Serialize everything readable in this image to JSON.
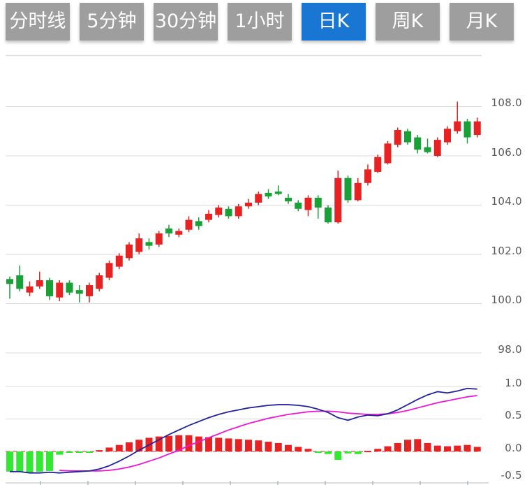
{
  "toolbar": {
    "buttons": [
      {
        "label": "分时线",
        "active": false
      },
      {
        "label": "5分钟",
        "active": false
      },
      {
        "label": "30分钟",
        "active": false
      },
      {
        "label": "1小时",
        "active": false
      },
      {
        "label": "日K",
        "active": true
      },
      {
        "label": "周K",
        "active": false
      },
      {
        "label": "月K",
        "active": false
      }
    ]
  },
  "chart_data": {
    "type": "candlestick+macd",
    "grid": true,
    "price_axis": {
      "side": "right",
      "ticks": [
        108.0,
        106.0,
        104.0,
        102.0,
        100.0,
        98.0
      ],
      "labels": [
        "108.0",
        "106.0",
        "104.0",
        "102.0",
        "100.0",
        "98.0"
      ],
      "range": [
        97.0,
        110.0
      ]
    },
    "indicator_axis": {
      "side": "right",
      "ticks": [
        1.0,
        0.5,
        0.0,
        -0.5
      ],
      "labels": [
        "1.0",
        "0.5",
        "0.0",
        "-0.5"
      ],
      "range": [
        -0.5,
        1.0
      ]
    },
    "candles_ohlc": [
      [
        101.0,
        101.1,
        100.2,
        100.8
      ],
      [
        101.15,
        101.55,
        100.5,
        100.6
      ],
      [
        100.45,
        100.9,
        100.3,
        100.7
      ],
      [
        100.7,
        101.3,
        100.6,
        100.95
      ],
      [
        100.95,
        101.05,
        100.15,
        100.3
      ],
      [
        100.25,
        100.95,
        100.1,
        100.85
      ],
      [
        100.85,
        100.95,
        100.35,
        100.45
      ],
      [
        100.55,
        100.75,
        100.05,
        100.4
      ],
      [
        100.3,
        100.85,
        100.05,
        100.75
      ],
      [
        100.6,
        101.25,
        100.5,
        101.15
      ],
      [
        101.05,
        101.75,
        100.95,
        101.65
      ],
      [
        101.5,
        102.05,
        101.4,
        101.95
      ],
      [
        101.85,
        102.5,
        101.75,
        102.4
      ],
      [
        102.1,
        102.85,
        102.0,
        102.65
      ],
      [
        102.5,
        102.65,
        102.2,
        102.35
      ],
      [
        102.4,
        102.95,
        102.3,
        102.85
      ],
      [
        103.05,
        103.2,
        102.7,
        102.85
      ],
      [
        102.8,
        103.05,
        102.7,
        102.95
      ],
      [
        103.0,
        103.55,
        102.9,
        103.4
      ],
      [
        103.35,
        103.5,
        103.0,
        103.15
      ],
      [
        103.4,
        103.8,
        103.3,
        103.65
      ],
      [
        103.6,
        104.0,
        103.5,
        103.9
      ],
      [
        103.85,
        103.95,
        103.45,
        103.55
      ],
      [
        103.55,
        104.05,
        103.45,
        103.95
      ],
      [
        103.95,
        104.25,
        103.85,
        104.1
      ],
      [
        104.1,
        104.55,
        104.0,
        104.45
      ],
      [
        104.5,
        104.65,
        104.25,
        104.35
      ],
      [
        104.55,
        104.8,
        104.4,
        104.45
      ],
      [
        104.3,
        104.45,
        104.05,
        104.15
      ],
      [
        104.1,
        104.2,
        103.75,
        103.85
      ],
      [
        103.8,
        104.4,
        103.55,
        104.3
      ],
      [
        104.3,
        104.4,
        103.45,
        103.9
      ],
      [
        103.9,
        104.0,
        103.25,
        103.3
      ],
      [
        103.3,
        105.4,
        103.25,
        105.1
      ],
      [
        105.1,
        105.2,
        104.1,
        104.2
      ],
      [
        104.2,
        105.1,
        104.15,
        104.9
      ],
      [
        104.9,
        105.65,
        104.8,
        105.45
      ],
      [
        105.35,
        106.05,
        105.3,
        105.95
      ],
      [
        105.7,
        106.6,
        105.65,
        106.5
      ],
      [
        106.45,
        107.15,
        106.35,
        107.05
      ],
      [
        107.0,
        107.1,
        106.45,
        106.55
      ],
      [
        106.75,
        106.85,
        106.1,
        106.25
      ],
      [
        106.35,
        106.7,
        106.1,
        106.15
      ],
      [
        106.0,
        106.75,
        105.95,
        106.65
      ],
      [
        106.55,
        107.2,
        106.45,
        107.1
      ],
      [
        107.0,
        108.2,
        106.9,
        107.4
      ],
      [
        107.4,
        107.5,
        106.5,
        106.75
      ],
      [
        106.85,
        107.55,
        106.75,
        107.4
      ]
    ],
    "macd": {
      "histogram": [
        -0.31,
        -0.31,
        -0.32,
        -0.31,
        -0.3,
        -0.05,
        -0.01,
        -0.02,
        -0.02,
        0.02,
        0.06,
        0.1,
        0.14,
        0.18,
        0.21,
        0.23,
        0.24,
        0.25,
        0.25,
        0.23,
        0.22,
        0.21,
        0.2,
        0.19,
        0.18,
        0.17,
        0.15,
        0.13,
        0.1,
        0.07,
        0.04,
        -0.02,
        -0.04,
        -0.13,
        -0.03,
        -0.04,
        0.01,
        0.04,
        0.08,
        0.13,
        0.18,
        0.19,
        0.13,
        0.09,
        0.08,
        0.09,
        0.1,
        0.07
      ],
      "dif": [
        -0.31,
        -0.31,
        -0.33,
        -0.33,
        -0.32,
        -0.33,
        -0.32,
        -0.31,
        -0.3,
        -0.27,
        -0.22,
        -0.15,
        -0.07,
        0.02,
        0.1,
        0.18,
        0.26,
        0.33,
        0.4,
        0.46,
        0.52,
        0.57,
        0.61,
        0.64,
        0.67,
        0.69,
        0.71,
        0.72,
        0.72,
        0.71,
        0.69,
        0.65,
        0.6,
        0.52,
        0.48,
        0.53,
        0.56,
        0.55,
        0.58,
        0.64,
        0.72,
        0.8,
        0.87,
        0.92,
        0.9,
        0.93,
        0.97,
        0.96
      ],
      "dea": [
        null,
        null,
        null,
        null,
        null,
        -0.29,
        -0.3,
        -0.3,
        -0.3,
        -0.3,
        -0.29,
        -0.27,
        -0.24,
        -0.2,
        -0.15,
        -0.1,
        -0.04,
        0.02,
        0.09,
        0.15,
        0.21,
        0.27,
        0.33,
        0.38,
        0.43,
        0.47,
        0.51,
        0.54,
        0.57,
        0.59,
        0.61,
        0.62,
        0.62,
        0.61,
        0.59,
        0.58,
        0.57,
        0.57,
        0.58,
        0.6,
        0.63,
        0.67,
        0.71,
        0.75,
        0.78,
        0.81,
        0.84,
        0.86
      ]
    },
    "colors": {
      "up": "#e62222",
      "down": "#18a136",
      "hist_up": "#e62222",
      "hist_down": "#33e833",
      "dif_line": "#23239b",
      "dea_line": "#ee16d6",
      "grid": "#d9d9d9",
      "zero_dashed": "#ef6e6e",
      "axis_text": "#595959",
      "button_bg": "#9e9e9e",
      "button_active_bg": "#1976d2"
    }
  }
}
